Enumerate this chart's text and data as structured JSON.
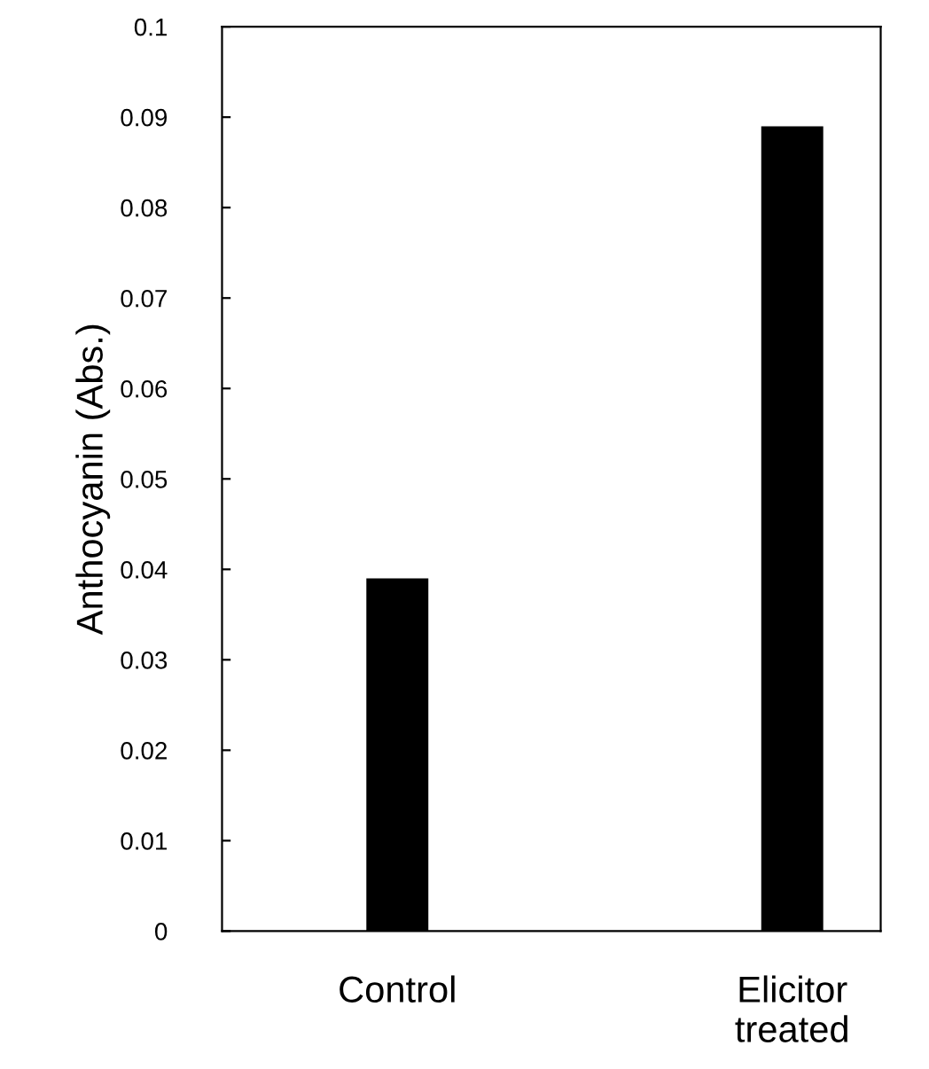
{
  "chart_data": {
    "type": "bar",
    "ylabel": "Anthocyanin (Abs.)",
    "categories": [
      "Control",
      "Elicitor\ntreated"
    ],
    "values": [
      0.039,
      0.089
    ],
    "color": "#000000",
    "ylim": [
      0,
      0.1
    ],
    "yticks": [
      0,
      0.01,
      0.02,
      0.03,
      0.04,
      0.05,
      0.06,
      0.07,
      0.08,
      0.09,
      0.1
    ],
    "grid": false
  }
}
